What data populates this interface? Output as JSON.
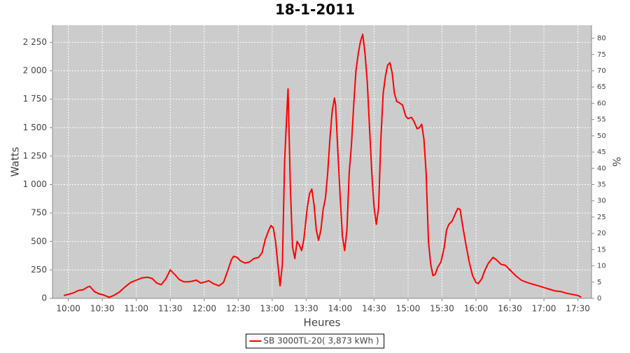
{
  "chart_data": {
    "type": "line",
    "title": "18-1-2011",
    "x_label": "Heures",
    "y_label": "Watts",
    "y2_label": "%",
    "x": [
      "09:56",
      "10:00",
      "10:05",
      "10:09",
      "10:13",
      "10:17",
      "10:19",
      "10:23",
      "10:27",
      "10:31",
      "10:36",
      "10:40",
      "10:45",
      "10:50",
      "10:55",
      "11:00",
      "11:05",
      "11:10",
      "11:14",
      "11:18",
      "11:22",
      "11:26",
      "11:30",
      "11:34",
      "11:38",
      "11:42",
      "11:46",
      "11:49",
      "11:53",
      "11:57",
      "12:01",
      "12:04",
      "12:08",
      "12:13",
      "12:17",
      "12:21",
      "12:24",
      "12:26",
      "12:29",
      "12:32",
      "12:36",
      "12:40",
      "12:44",
      "12:48",
      "12:51",
      "12:54",
      "12:57",
      "12:59",
      "13:01",
      "13:03",
      "13:05",
      "13:07",
      "13:09",
      "13:11",
      "13:13",
      "13:14",
      "13:16",
      "13:18",
      "13:20",
      "13:22",
      "13:24",
      "13:26",
      "13:28",
      "13:31",
      "13:33",
      "13:35",
      "13:37",
      "13:39",
      "13:41",
      "13:43",
      "13:45",
      "13:47",
      "13:49",
      "13:51",
      "13:53",
      "13:55",
      "13:56",
      "13:58",
      "14:00",
      "14:02",
      "14:04",
      "14:06",
      "14:08",
      "14:10",
      "14:12",
      "14:14",
      "14:16",
      "14:18",
      "14:20",
      "14:22",
      "14:24",
      "14:26",
      "14:28",
      "14:30",
      "14:32",
      "14:34",
      "14:36",
      "14:38",
      "14:40",
      "14:42",
      "14:44",
      "14:46",
      "14:48",
      "14:50",
      "14:52",
      "14:55",
      "14:58",
      "15:00",
      "15:03",
      "15:05",
      "15:08",
      "15:10",
      "15:12",
      "15:14",
      "15:16",
      "15:18",
      "15:20",
      "15:22",
      "15:24",
      "15:26",
      "15:29",
      "15:32",
      "15:34",
      "15:36",
      "15:39",
      "15:42",
      "15:44",
      "15:46",
      "15:48",
      "15:51",
      "15:54",
      "15:57",
      "16:00",
      "16:02",
      "16:05",
      "16:08",
      "16:11",
      "16:15",
      "16:18",
      "16:22",
      "16:26",
      "16:30",
      "16:35",
      "16:40",
      "16:45",
      "16:50",
      "16:55",
      "17:00",
      "17:05",
      "17:10",
      "17:15",
      "17:20",
      "17:25",
      "17:30",
      "17:33"
    ],
    "series": [
      {
        "name": "SB 3000TL-20( 3,873 kWh )",
        "color": "#ff0000",
        "values": [
          25,
          35,
          50,
          70,
          75,
          100,
          105,
          60,
          40,
          30,
          10,
          25,
          55,
          100,
          140,
          160,
          180,
          185,
          175,
          135,
          120,
          170,
          250,
          210,
          165,
          145,
          145,
          150,
          160,
          135,
          145,
          155,
          130,
          110,
          140,
          250,
          340,
          370,
          360,
          330,
          310,
          320,
          350,
          360,
          400,
          520,
          600,
          640,
          620,
          500,
          300,
          110,
          300,
          1200,
          1650,
          1840,
          1000,
          450,
          350,
          500,
          470,
          420,
          520,
          800,
          920,
          960,
          820,
          600,
          510,
          600,
          780,
          880,
          1100,
          1400,
          1650,
          1760,
          1700,
          1300,
          900,
          550,
          420,
          600,
          1100,
          1350,
          1700,
          2000,
          2150,
          2260,
          2320,
          2150,
          1900,
          1500,
          1100,
          800,
          650,
          800,
          1400,
          1800,
          1950,
          2050,
          2070,
          1980,
          1800,
          1730,
          1720,
          1700,
          1600,
          1580,
          1590,
          1560,
          1490,
          1500,
          1530,
          1400,
          1100,
          500,
          300,
          200,
          210,
          270,
          320,
          450,
          600,
          650,
          680,
          750,
          790,
          780,
          650,
          480,
          320,
          200,
          140,
          130,
          170,
          250,
          310,
          360,
          340,
          300,
          290,
          250,
          200,
          160,
          140,
          125,
          110,
          95,
          80,
          65,
          60,
          45,
          35,
          25,
          10
        ]
      }
    ],
    "xlim": [
      "09:46",
      "17:42"
    ],
    "xticks": [
      "10:00",
      "10:30",
      "11:00",
      "11:30",
      "12:00",
      "12:30",
      "13:00",
      "13:30",
      "14:00",
      "14:30",
      "15:00",
      "15:30",
      "16:00",
      "16:30",
      "17:00",
      "17:30"
    ],
    "ylim": [
      0,
      2400
    ],
    "yticks": [
      0,
      250,
      500,
      750,
      {
        "value": 1000,
        "label": "1 000"
      },
      {
        "value": 1250,
        "label": "1 250"
      },
      {
        "value": 1500,
        "label": "1 500"
      },
      {
        "value": 1750,
        "label": "1 750"
      },
      {
        "value": 2000,
        "label": "2 000"
      },
      {
        "value": 2250,
        "label": "2 250"
      }
    ],
    "y2lim": [
      0,
      84
    ],
    "y2ticks": [
      0,
      5,
      10,
      15,
      20,
      25,
      30,
      35,
      40,
      45,
      50,
      55,
      60,
      65,
      70,
      75,
      80
    ],
    "grid": true,
    "legend": "bottom",
    "background": "#cccccc"
  }
}
